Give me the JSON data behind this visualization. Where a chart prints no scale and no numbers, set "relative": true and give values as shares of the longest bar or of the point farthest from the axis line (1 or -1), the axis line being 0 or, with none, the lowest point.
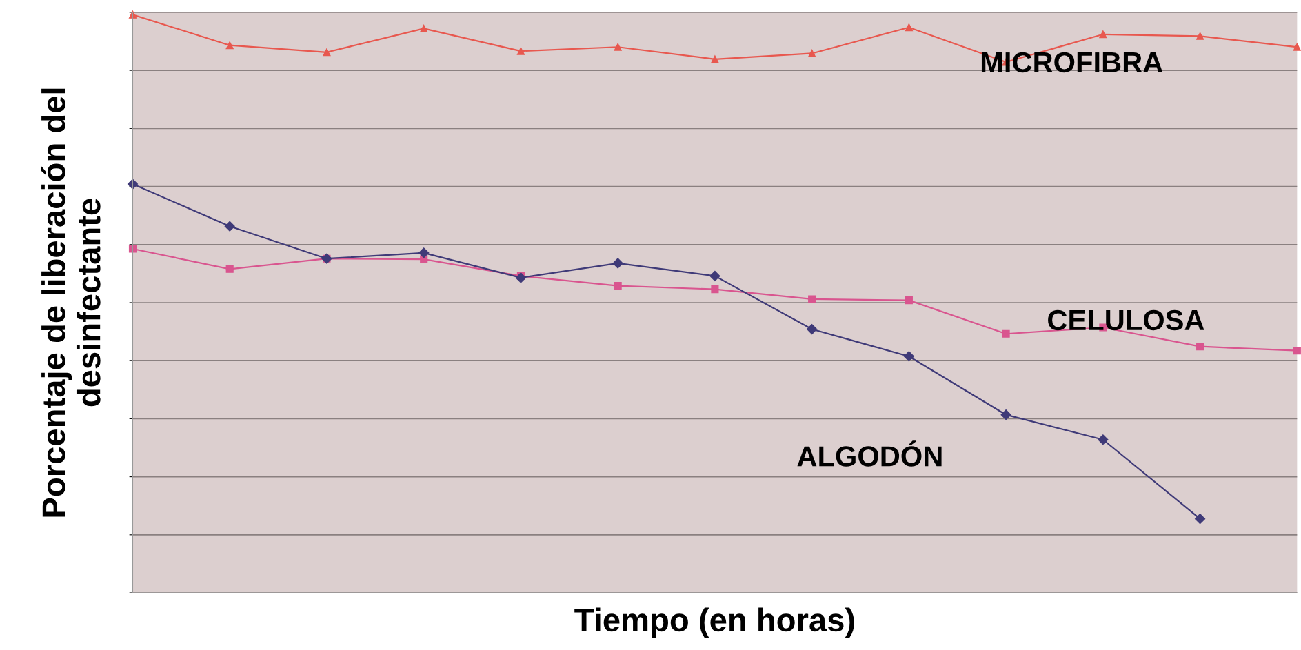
{
  "chart_data": {
    "type": "line",
    "relative": true,
    "xlabel": "Tiempo (en horas)",
    "ylabel": "Porcentaje de liberación del\ndesinfectante",
    "grid": "y",
    "categories": [
      null,
      null,
      null,
      null,
      null,
      null,
      null,
      null,
      null,
      null,
      null,
      null,
      null
    ],
    "series": [
      {
        "name": "MICROFIBRA",
        "color": "#e8584f",
        "marker": "triangle",
        "values": [
          1,
          0.947,
          0.935,
          0.976,
          0.937,
          0.944,
          0.923,
          0.933,
          0.978,
          0.918,
          0.966,
          0.963,
          0.944
        ]
      },
      {
        "name": "CELULOSA",
        "color": "#d9558f",
        "marker": "square",
        "values": [
          0.595,
          0.56,
          0.578,
          0.577,
          0.548,
          0.531,
          0.525,
          0.508,
          0.506,
          0.448,
          0.459,
          0.426,
          0.419
        ]
      },
      {
        "name": "ALGODÓN",
        "color": "#3f3a78",
        "marker": "diamond",
        "values": [
          0.707,
          0.634,
          0.578,
          0.588,
          0.545,
          0.57,
          0.548,
          0.456,
          0.409,
          0.308,
          0.265,
          0.128,
          null
        ]
      }
    ]
  }
}
